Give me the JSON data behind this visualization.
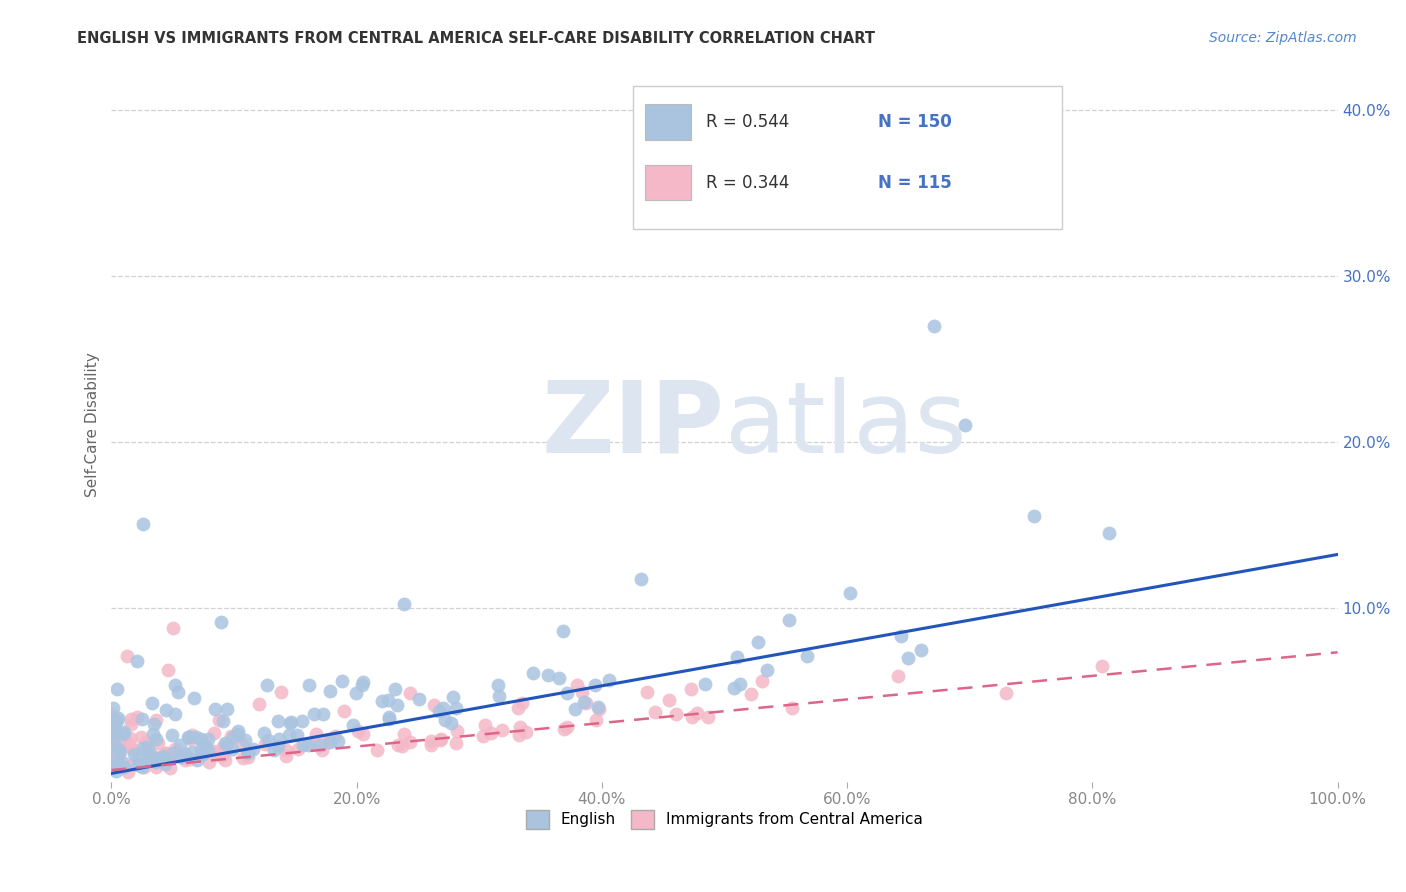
{
  "title": "ENGLISH VS IMMIGRANTS FROM CENTRAL AMERICA SELF-CARE DISABILITY CORRELATION CHART",
  "source_text": "Source: ZipAtlas.com",
  "ylabel": "Self-Care Disability",
  "xlim": [
    0.0,
    1.0
  ],
  "ylim": [
    -0.005,
    0.425
  ],
  "xtick_vals": [
    0.0,
    0.2,
    0.4,
    0.6,
    0.8,
    1.0
  ],
  "xtick_labels": [
    "0.0%",
    "20.0%",
    "40.0%",
    "60.0%",
    "80.0%",
    "100.0%"
  ],
  "ytick_vals": [
    0.1,
    0.2,
    0.3,
    0.4
  ],
  "ytick_labels": [
    "10.0%",
    "20.0%",
    "30.0%",
    "40.0%"
  ],
  "blue_R": 0.544,
  "blue_N": 150,
  "pink_R": 0.344,
  "pink_N": 115,
  "blue_color": "#aac4e0",
  "pink_color": "#f4b8c8",
  "blue_line_color": "#2255bb",
  "pink_line_color": "#dd6688",
  "background_color": "#ffffff",
  "grid_color": "#cccccc",
  "title_color": "#333333",
  "watermark_color": "#dde5f0",
  "legend_text_color": "#333333",
  "legend_val_color": "#4472c4",
  "source_color": "#5588cc",
  "ylabel_color": "#666666",
  "tick_color": "#888888",
  "blue_line_y0": 0.0,
  "blue_line_y1": 0.132,
  "pink_line_y0": 0.002,
  "pink_line_y1": 0.073
}
